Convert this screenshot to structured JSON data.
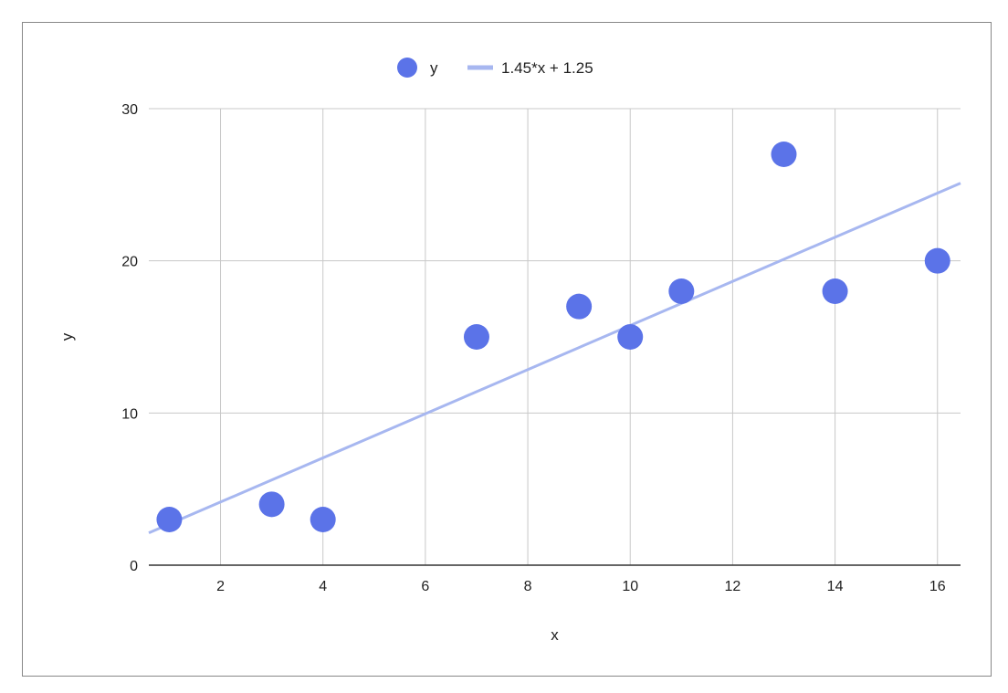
{
  "chart_data": {
    "type": "scatter",
    "title": "",
    "xlabel": "x",
    "ylabel": "y",
    "xlim": [
      0.6,
      16.45
    ],
    "ylim": [
      0,
      30
    ],
    "x_ticks": [
      2,
      4,
      6,
      8,
      10,
      12,
      14,
      16
    ],
    "y_ticks": [
      0,
      10,
      20,
      30
    ],
    "grid": true,
    "legend_position": "top-center",
    "series": [
      {
        "name": "y",
        "kind": "scatter",
        "color": "#5b73e8",
        "points": [
          {
            "x": 1,
            "y": 3
          },
          {
            "x": 3,
            "y": 4
          },
          {
            "x": 4,
            "y": 3
          },
          {
            "x": 7,
            "y": 15
          },
          {
            "x": 9,
            "y": 17
          },
          {
            "x": 10,
            "y": 15
          },
          {
            "x": 11,
            "y": 18
          },
          {
            "x": 13,
            "y": 27
          },
          {
            "x": 14,
            "y": 18
          },
          {
            "x": 16,
            "y": 20
          }
        ]
      },
      {
        "name": "1.45*x + 1.25",
        "kind": "trendline",
        "color": "#a7b7f0",
        "slope": 1.45,
        "intercept": 1.25
      }
    ]
  }
}
